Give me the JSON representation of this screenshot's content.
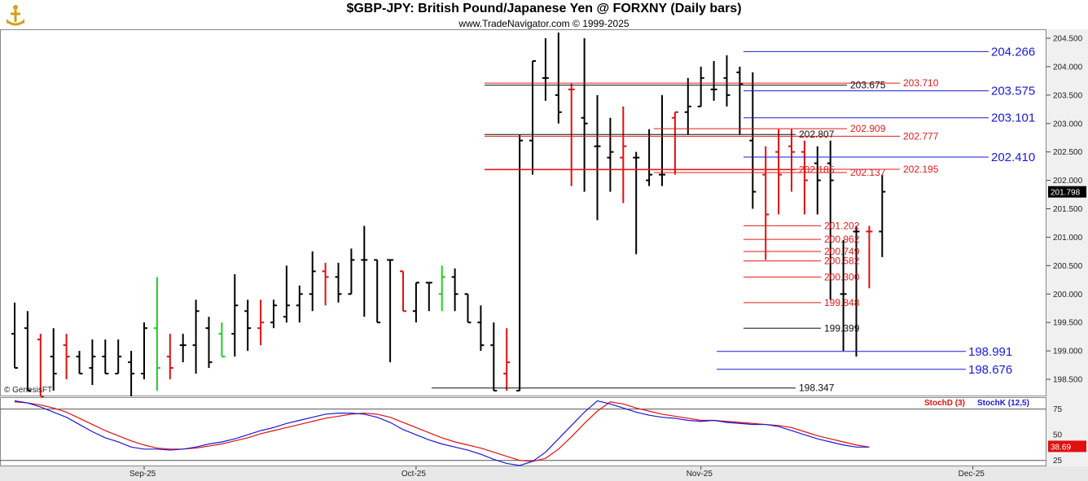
{
  "header": {
    "title": "$GBP-JPY:  British Pound/Japanese Yen @ FORXNY  (Daily bars)",
    "subtitle": "www.TradeNavigator.com © 1999-2025",
    "copyright": "© GenesisFT"
  },
  "chart_data": {
    "type": "ohlc",
    "price_axis": {
      "ticks": [
        "204.500",
        "204.000",
        "203.500",
        "203.000",
        "202.500",
        "202.000",
        "201.500",
        "201.000",
        "200.500",
        "200.000",
        "199.500",
        "199.000",
        "198.500"
      ],
      "ylim": [
        198.2,
        204.6
      ],
      "last_price": "201.798"
    },
    "x_axis": {
      "labels": [
        {
          "label": "Sep-25",
          "bar": 10
        },
        {
          "label": "Oct-25",
          "bar": 31
        },
        {
          "label": "Nov-25",
          "bar": 53
        },
        {
          "label": "Dec-25",
          "bar": 74
        }
      ],
      "bar_count": 80
    },
    "bars": [
      [
        199.3,
        199.85,
        199.2,
        198.7,
        "b"
      ],
      [
        199.4,
        199.7,
        198.6,
        198.3,
        "b"
      ],
      [
        199.2,
        199.3,
        198.4,
        198.2,
        "r"
      ],
      [
        198.9,
        199.4,
        198.3,
        198.6,
        "b"
      ],
      [
        199.1,
        199.3,
        198.5,
        198.9,
        "r"
      ],
      [
        198.9,
        199.0,
        198.6,
        198.6,
        "b"
      ],
      [
        198.7,
        199.2,
        198.4,
        198.9,
        "b"
      ],
      [
        198.9,
        199.2,
        198.6,
        198.6,
        "b"
      ],
      [
        198.6,
        199.2,
        198.7,
        198.9,
        "b"
      ],
      [
        198.8,
        199.0,
        198.2,
        198.6,
        "b"
      ],
      [
        198.6,
        199.5,
        198.5,
        199.4,
        "b"
      ],
      [
        199.4,
        200.3,
        198.3,
        198.7,
        "g"
      ],
      [
        198.9,
        199.3,
        198.5,
        198.7,
        "r"
      ],
      [
        199.1,
        199.3,
        198.8,
        199.1,
        "b"
      ],
      [
        199.1,
        199.9,
        198.6,
        199.7,
        "b"
      ],
      [
        199.4,
        199.6,
        198.7,
        198.8,
        "b"
      ],
      [
        199.3,
        199.5,
        198.9,
        198.9,
        "g"
      ],
      [
        199.3,
        200.35,
        198.9,
        199.8,
        "b"
      ],
      [
        199.7,
        199.9,
        199.0,
        199.4,
        "b"
      ],
      [
        199.4,
        199.9,
        199.1,
        199.5,
        "r"
      ],
      [
        199.5,
        199.9,
        199.4,
        199.8,
        "b"
      ],
      [
        199.6,
        200.5,
        199.5,
        199.8,
        "b"
      ],
      [
        199.8,
        200.15,
        199.5,
        200.0,
        "b"
      ],
      [
        200.0,
        200.75,
        199.7,
        200.4,
        "b"
      ],
      [
        200.4,
        200.55,
        199.8,
        200.3,
        "r"
      ],
      [
        200.3,
        200.55,
        199.85,
        200.0,
        "b"
      ],
      [
        200.0,
        200.8,
        200.3,
        200.6,
        "b"
      ],
      [
        200.6,
        201.2,
        199.6,
        200.6,
        "b"
      ],
      [
        200.6,
        200.6,
        199.9,
        199.5,
        "b"
      ],
      [
        200.6,
        200.6,
        198.8,
        200.6,
        "b"
      ],
      [
        200.4,
        200.4,
        199.7,
        199.7,
        "r"
      ],
      [
        199.7,
        199.5,
        199.6,
        200.2,
        "b"
      ],
      [
        200.2,
        200.2,
        199.7,
        200.2,
        "b"
      ],
      [
        200.0,
        200.5,
        199.7,
        200.3,
        "g"
      ],
      [
        200.3,
        200.45,
        199.7,
        200.0,
        "b"
      ],
      [
        200.0,
        199.95,
        199.6,
        199.5,
        "b"
      ],
      [
        199.5,
        199.8,
        199.0,
        199.1,
        "b"
      ],
      [
        199.1,
        199.5,
        198.3,
        198.3,
        "b"
      ],
      [
        198.6,
        199.4,
        198.3,
        198.8,
        "r"
      ],
      [
        198.3,
        202.8,
        202.1,
        202.7,
        "b"
      ],
      [
        202.7,
        204.1,
        202.1,
        204.1,
        "b"
      ],
      [
        203.8,
        204.5,
        203.4,
        203.8,
        "b"
      ],
      [
        203.5,
        204.6,
        203.0,
        203.2,
        "b"
      ],
      [
        203.6,
        203.7,
        201.9,
        203.6,
        "r"
      ],
      [
        203.1,
        204.5,
        201.8,
        203.0,
        "b"
      ],
      [
        202.6,
        203.5,
        201.3,
        202.6,
        "b"
      ],
      [
        202.4,
        203.1,
        201.8,
        202.5,
        "b"
      ],
      [
        202.4,
        203.3,
        201.6,
        202.6,
        "r"
      ],
      [
        202.4,
        202.5,
        200.7,
        202.4,
        "b"
      ],
      [
        202.0,
        202.9,
        201.9,
        202.1,
        "b"
      ],
      [
        202.1,
        203.5,
        201.9,
        202.1,
        "b"
      ],
      [
        203.1,
        203.2,
        202.1,
        203.2,
        "r"
      ],
      [
        203.2,
        203.8,
        202.8,
        203.3,
        "b"
      ],
      [
        203.3,
        204.0,
        203.3,
        203.8,
        "b"
      ],
      [
        203.6,
        204.1,
        203.4,
        203.6,
        "b"
      ],
      [
        203.8,
        204.2,
        203.3,
        203.5,
        "b"
      ],
      [
        203.9,
        204.0,
        202.8,
        203.7,
        "b"
      ],
      [
        202.7,
        203.9,
        201.5,
        201.8,
        "b"
      ],
      [
        202.1,
        202.6,
        200.6,
        201.4,
        "r"
      ],
      [
        202.5,
        202.9,
        201.4,
        202.1,
        "r"
      ],
      [
        202.6,
        202.9,
        201.8,
        202.5,
        "r"
      ],
      [
        202.5,
        202.7,
        201.4,
        202.0,
        "r"
      ],
      [
        202.3,
        202.6,
        201.4,
        202.0,
        "b"
      ],
      [
        202.3,
        202.7,
        199.9,
        202.0,
        "b"
      ],
      [
        200.0,
        200.95,
        199.0,
        200.0,
        "b"
      ],
      [
        201.1,
        201.2,
        198.9,
        201.1,
        "b"
      ],
      [
        201.1,
        201.2,
        200.1,
        201.1,
        "r"
      ],
      [
        201.1,
        202.1,
        200.65,
        201.8,
        "b"
      ]
    ],
    "levels": [
      {
        "label": "204.266",
        "color": "#1a1ad6",
        "style": "big"
      },
      {
        "label": "203.710",
        "color": "#e01a1a",
        "style": "small"
      },
      {
        "label": "203.675",
        "color": "#111111",
        "style": "small"
      },
      {
        "label": "203.575",
        "color": "#1a1ad6",
        "style": "big"
      },
      {
        "label": "203.101",
        "color": "#1a1ad6",
        "style": "big"
      },
      {
        "label": "202.909",
        "color": "#e01a1a",
        "style": "small"
      },
      {
        "label": "202.807",
        "color": "#111111",
        "style": "small"
      },
      {
        "label": "202.777",
        "color": "#e01a1a",
        "style": "small"
      },
      {
        "label": "202.410",
        "color": "#1a1ad6",
        "style": "big"
      },
      {
        "label": "202.195",
        "color": "#e01a1a",
        "style": "small"
      },
      {
        "label": "202.185",
        "color": "#e01a1a",
        "style": "small"
      },
      {
        "label": "202.137",
        "color": "#e01a1a",
        "style": "small"
      },
      {
        "label": "201.202",
        "color": "#e01a1a",
        "style": "small"
      },
      {
        "label": "200.962",
        "color": "#e01a1a",
        "style": "small"
      },
      {
        "label": "200.749",
        "color": "#e01a1a",
        "style": "small"
      },
      {
        "label": "200.582",
        "color": "#e01a1a",
        "style": "small"
      },
      {
        "label": "200.300",
        "color": "#e01a1a",
        "style": "small"
      },
      {
        "label": "199.848",
        "color": "#e01a1a",
        "style": "small"
      },
      {
        "label": "199.399",
        "color": "#111111",
        "style": "small"
      },
      {
        "label": "198.991",
        "color": "#1a1ad6",
        "style": "big"
      },
      {
        "label": "198.676",
        "color": "#1a1ad6",
        "style": "big"
      },
      {
        "label": "198.347",
        "color": "#111111",
        "style": "small"
      }
    ],
    "oscillator": {
      "legend": [
        "StochD (3)",
        "StochK (12,5)"
      ],
      "ticks": [
        "75",
        "50",
        "25"
      ],
      "ylim": [
        20,
        85
      ],
      "last_value": "38.69",
      "stoch_k": [
        83,
        81,
        77,
        72,
        67,
        60,
        53,
        47,
        43,
        38,
        36,
        36,
        35,
        36,
        38,
        41,
        43,
        46,
        50,
        54,
        57,
        61,
        64,
        67,
        70,
        71,
        71,
        70,
        67,
        62,
        55,
        50,
        45,
        41,
        38,
        35,
        31,
        26,
        22,
        20,
        24,
        33,
        46,
        59,
        72,
        83,
        80,
        76,
        72,
        69,
        67,
        66,
        64,
        63,
        64,
        62,
        61,
        60,
        60,
        58,
        54,
        50,
        46,
        43,
        40,
        38,
        38
      ],
      "stoch_d": [
        82,
        81,
        79,
        76,
        72,
        66,
        60,
        54,
        49,
        44,
        40,
        37,
        36,
        36,
        37,
        39,
        41,
        44,
        47,
        51,
        54,
        57,
        60,
        63,
        66,
        68,
        70,
        71,
        70,
        67,
        62,
        57,
        52,
        47,
        43,
        40,
        37,
        33,
        29,
        25,
        24,
        27,
        36,
        48,
        61,
        73,
        82,
        80,
        76,
        73,
        70,
        68,
        66,
        64,
        64,
        63,
        62,
        61,
        60,
        59,
        57,
        53,
        49,
        46,
        43,
        40,
        38
      ]
    }
  }
}
